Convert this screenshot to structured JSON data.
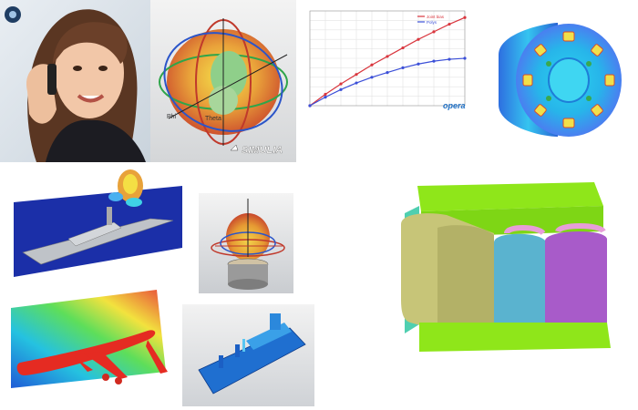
{
  "collage": {
    "simulia_logo_text": "SIMULIA",
    "opera_logo_text": "opera",
    "chart_legend": [
      "Joint bias",
      "Polys"
    ]
  },
  "chart_data": {
    "type": "line",
    "title": "",
    "xlabel": "",
    "ylabel": "",
    "x": [
      0,
      10,
      20,
      30,
      40,
      50,
      60,
      70,
      80,
      90,
      100
    ],
    "xlim": [
      0,
      100
    ],
    "ylim": [
      0,
      100
    ],
    "grid": true,
    "legend_position": "top-right",
    "series": [
      {
        "name": "Joint bias",
        "color": "#d9363e",
        "values": [
          0,
          12,
          23,
          33,
          43,
          52,
          61,
          70,
          78,
          86,
          93
        ]
      },
      {
        "name": "Polys",
        "color": "#3b4fd8",
        "values": [
          0,
          9,
          17,
          24,
          30,
          35,
          40,
          44,
          47,
          49,
          50
        ]
      }
    ]
  }
}
